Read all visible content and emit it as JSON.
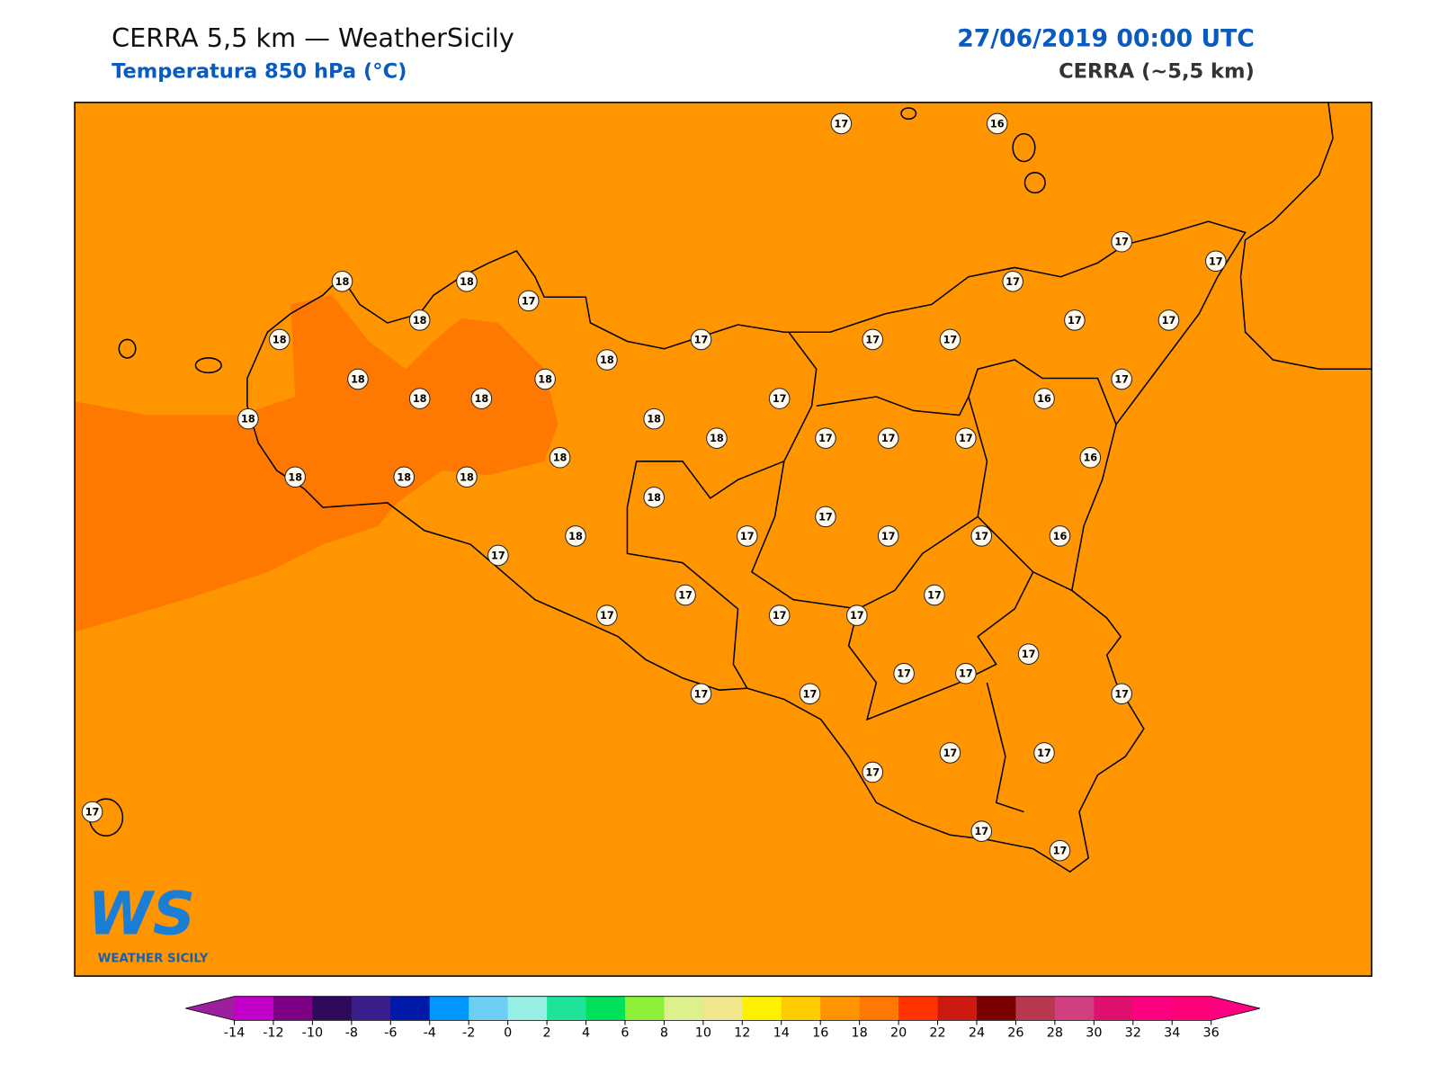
{
  "header": {
    "title": "CERRA 5,5 km — WeatherSicily",
    "subtitle": "Temperatura 850 hPa (°C)",
    "datetime": "27/06/2019 00:00 UTC",
    "model": "CERRA (~5,5 km)"
  },
  "stations": [
    17,
    16,
    18,
    18,
    17,
    18,
    18,
    17,
    17,
    17,
    17,
    17,
    17,
    17,
    17,
    18,
    18,
    18,
    17,
    18,
    18,
    17,
    16,
    18,
    18,
    18,
    17,
    17,
    17,
    18,
    16,
    18,
    18,
    18,
    18,
    17,
    18,
    17,
    17,
    17,
    16,
    17,
    17,
    17,
    17,
    17,
    17,
    17,
    17,
    17,
    17,
    17,
    17,
    17,
    17,
    17,
    17,
    17,
    17
  ],
  "logo": {
    "mark": "WS",
    "text": "WEATHER SICILY"
  },
  "colorbar": {
    "ticks": [
      -14,
      -12,
      -10,
      -8,
      -6,
      -4,
      -2,
      0,
      2,
      4,
      6,
      8,
      10,
      12,
      14,
      16,
      18,
      20,
      22,
      24,
      26,
      28,
      30,
      32,
      34,
      36
    ],
    "colors": [
      "#c300c9",
      "#7d0085",
      "#2d0a5a",
      "#3b1e8c",
      "#0019a8",
      "#0097ff",
      "#6dcff6",
      "#96f0e6",
      "#1ee49a",
      "#00e05a",
      "#8cf037",
      "#dcf08c",
      "#f0e68c",
      "#fff000",
      "#ffcc00",
      "#ff9500",
      "#ff7800",
      "#ff3200",
      "#cd1a10",
      "#7b0000",
      "#b83850",
      "#d04080",
      "#e01070",
      "#ff0080",
      "#ff0078"
    ],
    "under": "#9b1f9f",
    "over": "#ff0080"
  }
}
